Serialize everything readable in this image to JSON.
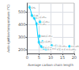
{
  "chart_data": {
    "type": "scatter",
    "xlabel": "Average carbon chain length",
    "ylabel": "Auto-ignition temperature (°C)",
    "xlim": [
      0,
      20
    ],
    "ylim": [
      170,
      570
    ],
    "xticks": [
      0,
      5,
      10,
      15,
      20
    ],
    "yticks": [
      200,
      300,
      400,
      500
    ],
    "grid": true,
    "series": [
      {
        "type": "line",
        "color": "#00cfff",
        "x": [
          1,
          1.5,
          2,
          2.5,
          3,
          3.5,
          4,
          4.5,
          5,
          5.5,
          6,
          6.5,
          7,
          7.5,
          8,
          9,
          10,
          12,
          14,
          16,
          18,
          20
        ],
        "values": [
          537,
          510,
          472,
          462,
          450,
          430,
          405,
          310,
          260,
          235,
          225,
          218,
          215,
          210,
          206,
          205,
          208,
          203,
          202,
          202,
          202,
          202
        ]
      },
      {
        "type": "scatter",
        "color": "#00cfff",
        "marker": "circle",
        "x": [
          1,
          2,
          3,
          4,
          4.2,
          5,
          5.5,
          5.2,
          6,
          6.5,
          7,
          8,
          9,
          10,
          10.5,
          12,
          12.5,
          14,
          16,
          18
        ],
        "values": [
          537,
          472,
          450,
          405,
          462,
          260,
          420,
          309,
          225,
          264,
          215,
          206,
          205,
          208,
          233,
          203,
          230,
          202,
          202,
          227
        ],
        "xerr": [
          0.4,
          0.4,
          0.4,
          0.4,
          0.5,
          0.4,
          0.5,
          0.5,
          0.4,
          0.5,
          0.4,
          0.4,
          0.4,
          0.4,
          0.5,
          0.4,
          0.5,
          0.4,
          0.4,
          0.4
        ],
        "yerr": [
          12,
          10,
          10,
          10,
          10,
          10,
          12,
          10,
          10,
          10,
          10,
          8,
          8,
          8,
          10,
          8,
          10,
          8,
          8,
          8
        ],
        "labels": [
          "CH₄",
          "C₂H₆",
          "C₃H₈",
          "n-C₄H₁₀",
          "i-C₄H₁₀",
          "n-C₅H₁₂",
          "i-C₅H₁₂",
          "neo-C₅H₁₂",
          "n-C₆H₁₄",
          "i-C₆H₁₄",
          "n-C₇H₁₆",
          "n-C₈H₁₈",
          "n-C₉H₂₀",
          "n-C₁₀H₂₂",
          "i-C₁₀H₂₂",
          "n-C₁₂H₂₆",
          "i-C₁₂H₂₆",
          "n-C₁₄H₃₀",
          "n-C₁₆H₃₄",
          "n-C₁₈H₃₈"
        ]
      }
    ]
  }
}
